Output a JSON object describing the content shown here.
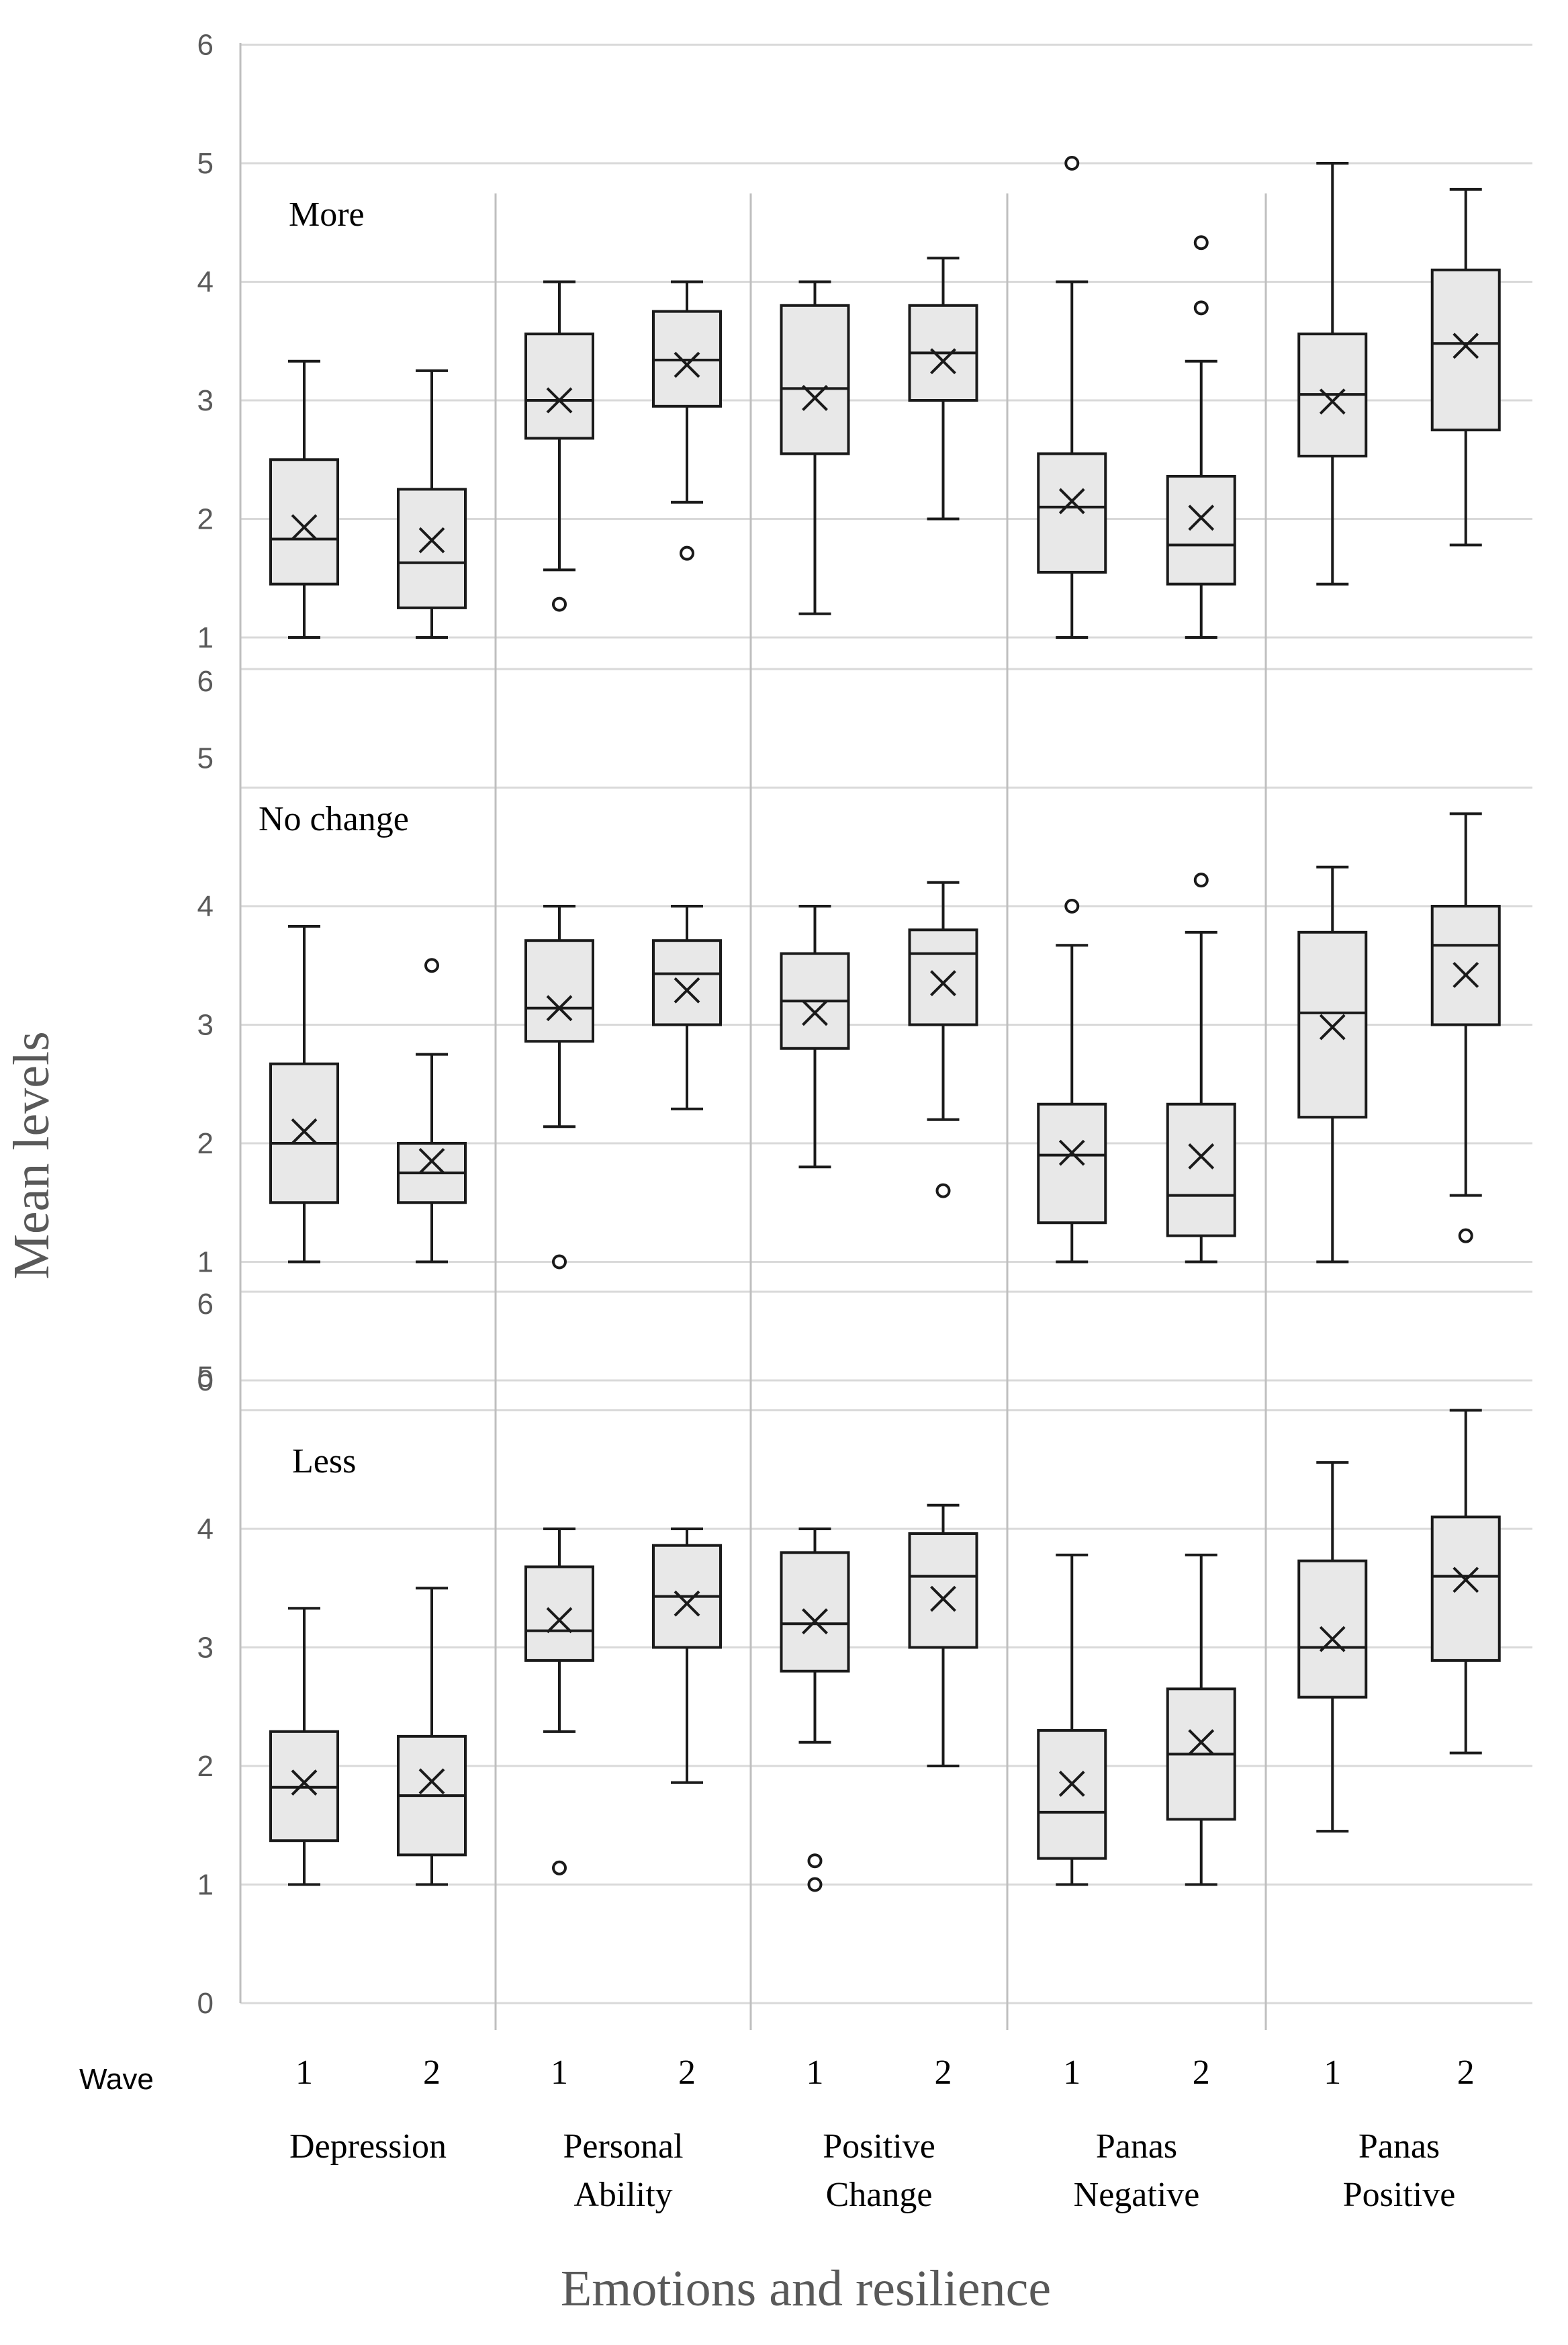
{
  "chart_data": {
    "type": "box",
    "xlabel": "Emotions and resilience",
    "ylabel": "Mean levels",
    "wave_label": "Wave",
    "categories": [
      "Depression",
      "Personal Ability",
      "Positive Change",
      "Panas Negative",
      "Panas Positive"
    ],
    "category_lines": [
      [
        "Depression"
      ],
      [
        "Personal",
        "Ability"
      ],
      [
        "Positive",
        "Change"
      ],
      [
        "Panas",
        "Negative"
      ],
      [
        "Panas",
        "Positive"
      ]
    ],
    "waves": [
      "1",
      "2"
    ],
    "panels": [
      {
        "label": "More",
        "ylim": [
          1,
          6
        ],
        "yticks": [
          "1",
          "2",
          "3",
          "4",
          "5",
          "6"
        ],
        "boxes": [
          {
            "category": "Depression",
            "wave": "1",
            "min": 1.0,
            "q1": 1.45,
            "median": 1.83,
            "q3": 2.5,
            "max": 3.33,
            "mean": 1.93,
            "outliers": []
          },
          {
            "category": "Depression",
            "wave": "2",
            "min": 1.0,
            "q1": 1.25,
            "median": 1.63,
            "q3": 2.25,
            "max": 3.25,
            "mean": 1.82,
            "outliers": []
          },
          {
            "category": "Personal Ability",
            "wave": "1",
            "min": 1.57,
            "q1": 2.68,
            "median": 3.0,
            "q3": 3.56,
            "max": 4.0,
            "mean": 3.0,
            "outliers": [
              1.28
            ]
          },
          {
            "category": "Personal Ability",
            "wave": "2",
            "min": 2.14,
            "q1": 2.95,
            "median": 3.34,
            "q3": 3.75,
            "max": 4.0,
            "mean": 3.3,
            "outliers": [
              1.71
            ]
          },
          {
            "category": "Positive Change",
            "wave": "1",
            "min": 1.2,
            "q1": 2.55,
            "median": 3.1,
            "q3": 3.8,
            "max": 4.0,
            "mean": 3.02,
            "outliers": []
          },
          {
            "category": "Positive Change",
            "wave": "2",
            "min": 2.0,
            "q1": 3.0,
            "median": 3.4,
            "q3": 3.8,
            "max": 4.2,
            "mean": 3.33,
            "outliers": []
          },
          {
            "category": "Panas Negative",
            "wave": "1",
            "min": 1.0,
            "q1": 1.55,
            "median": 2.1,
            "q3": 2.55,
            "max": 4.0,
            "mean": 2.15,
            "outliers": [
              5.0
            ]
          },
          {
            "category": "Panas Negative",
            "wave": "2",
            "min": 1.0,
            "q1": 1.45,
            "median": 1.78,
            "q3": 2.36,
            "max": 3.33,
            "mean": 2.01,
            "outliers": [
              3.78,
              4.33
            ]
          },
          {
            "category": "Panas Positive",
            "wave": "1",
            "min": 1.45,
            "q1": 2.53,
            "median": 3.05,
            "q3": 3.56,
            "max": 5.0,
            "mean": 2.99,
            "outliers": []
          },
          {
            "category": "Panas Positive",
            "wave": "2",
            "min": 1.78,
            "q1": 2.75,
            "median": 3.48,
            "q3": 4.1,
            "max": 4.78,
            "mean": 3.46,
            "outliers": []
          }
        ]
      },
      {
        "label": "No change",
        "ylim": [
          0,
          6
        ],
        "yticks": [
          "0",
          "1",
          "2",
          "3",
          "4",
          "5",
          "6"
        ],
        "boxes": [
          {
            "category": "Depression",
            "wave": "1",
            "min": 1.0,
            "q1": 1.5,
            "median": 2.0,
            "q3": 2.67,
            "max": 3.83,
            "mean": 2.1,
            "outliers": []
          },
          {
            "category": "Depression",
            "wave": "2",
            "min": 1.0,
            "q1": 1.5,
            "median": 1.75,
            "q3": 2.0,
            "max": 2.75,
            "mean": 1.85,
            "outliers": [
              3.5
            ]
          },
          {
            "category": "Personal Ability",
            "wave": "1",
            "min": 2.14,
            "q1": 2.86,
            "median": 3.14,
            "q3": 3.71,
            "max": 4.0,
            "mean": 3.14,
            "outliers": [
              1.0
            ]
          },
          {
            "category": "Personal Ability",
            "wave": "2",
            "min": 2.29,
            "q1": 3.0,
            "median": 3.43,
            "q3": 3.71,
            "max": 4.0,
            "mean": 3.29,
            "outliers": []
          },
          {
            "category": "Positive Change",
            "wave": "1",
            "min": 1.8,
            "q1": 2.8,
            "median": 3.2,
            "q3": 3.6,
            "max": 4.0,
            "mean": 3.1,
            "outliers": []
          },
          {
            "category": "Positive Change",
            "wave": "2",
            "min": 2.2,
            "q1": 3.0,
            "median": 3.6,
            "q3": 3.8,
            "max": 4.2,
            "mean": 3.35,
            "outliers": [
              1.6
            ]
          },
          {
            "category": "Panas Negative",
            "wave": "1",
            "min": 1.0,
            "q1": 1.33,
            "median": 1.9,
            "q3": 2.33,
            "max": 3.67,
            "mean": 1.92,
            "outliers": [
              4.0
            ]
          },
          {
            "category": "Panas Negative",
            "wave": "2",
            "min": 1.0,
            "q1": 1.22,
            "median": 1.56,
            "q3": 2.33,
            "max": 3.78,
            "mean": 1.89,
            "outliers": [
              4.22
            ]
          },
          {
            "category": "Panas Positive",
            "wave": "1",
            "min": 1.0,
            "q1": 2.22,
            "median": 3.1,
            "q3": 3.78,
            "max": 4.33,
            "mean": 2.98,
            "outliers": []
          },
          {
            "category": "Panas Positive",
            "wave": "2",
            "min": 1.56,
            "q1": 3.0,
            "median": 3.67,
            "q3": 4.0,
            "max": 4.78,
            "mean": 3.42,
            "outliers": [
              1.22
            ]
          }
        ]
      },
      {
        "label": "Less",
        "ylim": [
          0,
          6
        ],
        "yticks": [
          "0",
          "1",
          "2",
          "3",
          "4",
          "5",
          "6"
        ],
        "boxes": [
          {
            "category": "Depression",
            "wave": "1",
            "min": 1.0,
            "q1": 1.37,
            "median": 1.82,
            "q3": 2.29,
            "max": 3.33,
            "mean": 1.86,
            "outliers": []
          },
          {
            "category": "Depression",
            "wave": "2",
            "min": 1.0,
            "q1": 1.25,
            "median": 1.75,
            "q3": 2.25,
            "max": 3.5,
            "mean": 1.87,
            "outliers": []
          },
          {
            "category": "Personal Ability",
            "wave": "1",
            "min": 2.29,
            "q1": 2.89,
            "median": 3.14,
            "q3": 3.68,
            "max": 4.0,
            "mean": 3.23,
            "outliers": [
              1.14
            ]
          },
          {
            "category": "Personal Ability",
            "wave": "2",
            "min": 1.86,
            "q1": 3.0,
            "median": 3.43,
            "q3": 3.86,
            "max": 4.0,
            "mean": 3.37,
            "outliers": []
          },
          {
            "category": "Positive Change",
            "wave": "1",
            "min": 2.2,
            "q1": 2.8,
            "median": 3.2,
            "q3": 3.8,
            "max": 4.0,
            "mean": 3.22,
            "outliers": [
              1.0,
              1.2
            ]
          },
          {
            "category": "Positive Change",
            "wave": "2",
            "min": 2.0,
            "q1": 3.0,
            "median": 3.6,
            "q3": 3.96,
            "max": 4.2,
            "mean": 3.41,
            "outliers": []
          },
          {
            "category": "Panas Negative",
            "wave": "1",
            "min": 1.0,
            "q1": 1.22,
            "median": 1.61,
            "q3": 2.3,
            "max": 3.78,
            "mean": 1.85,
            "outliers": []
          },
          {
            "category": "Panas Negative",
            "wave": "2",
            "min": 1.0,
            "q1": 1.55,
            "median": 2.1,
            "q3": 2.65,
            "max": 3.78,
            "mean": 2.2,
            "outliers": []
          },
          {
            "category": "Panas Positive",
            "wave": "1",
            "min": 1.45,
            "q1": 2.58,
            "median": 3.0,
            "q3": 3.73,
            "max": 4.56,
            "mean": 3.07,
            "outliers": []
          },
          {
            "category": "Panas Positive",
            "wave": "2",
            "min": 2.11,
            "q1": 2.89,
            "median": 3.6,
            "q3": 4.1,
            "max": 5.0,
            "mean": 3.57,
            "outliers": []
          }
        ]
      }
    ]
  }
}
